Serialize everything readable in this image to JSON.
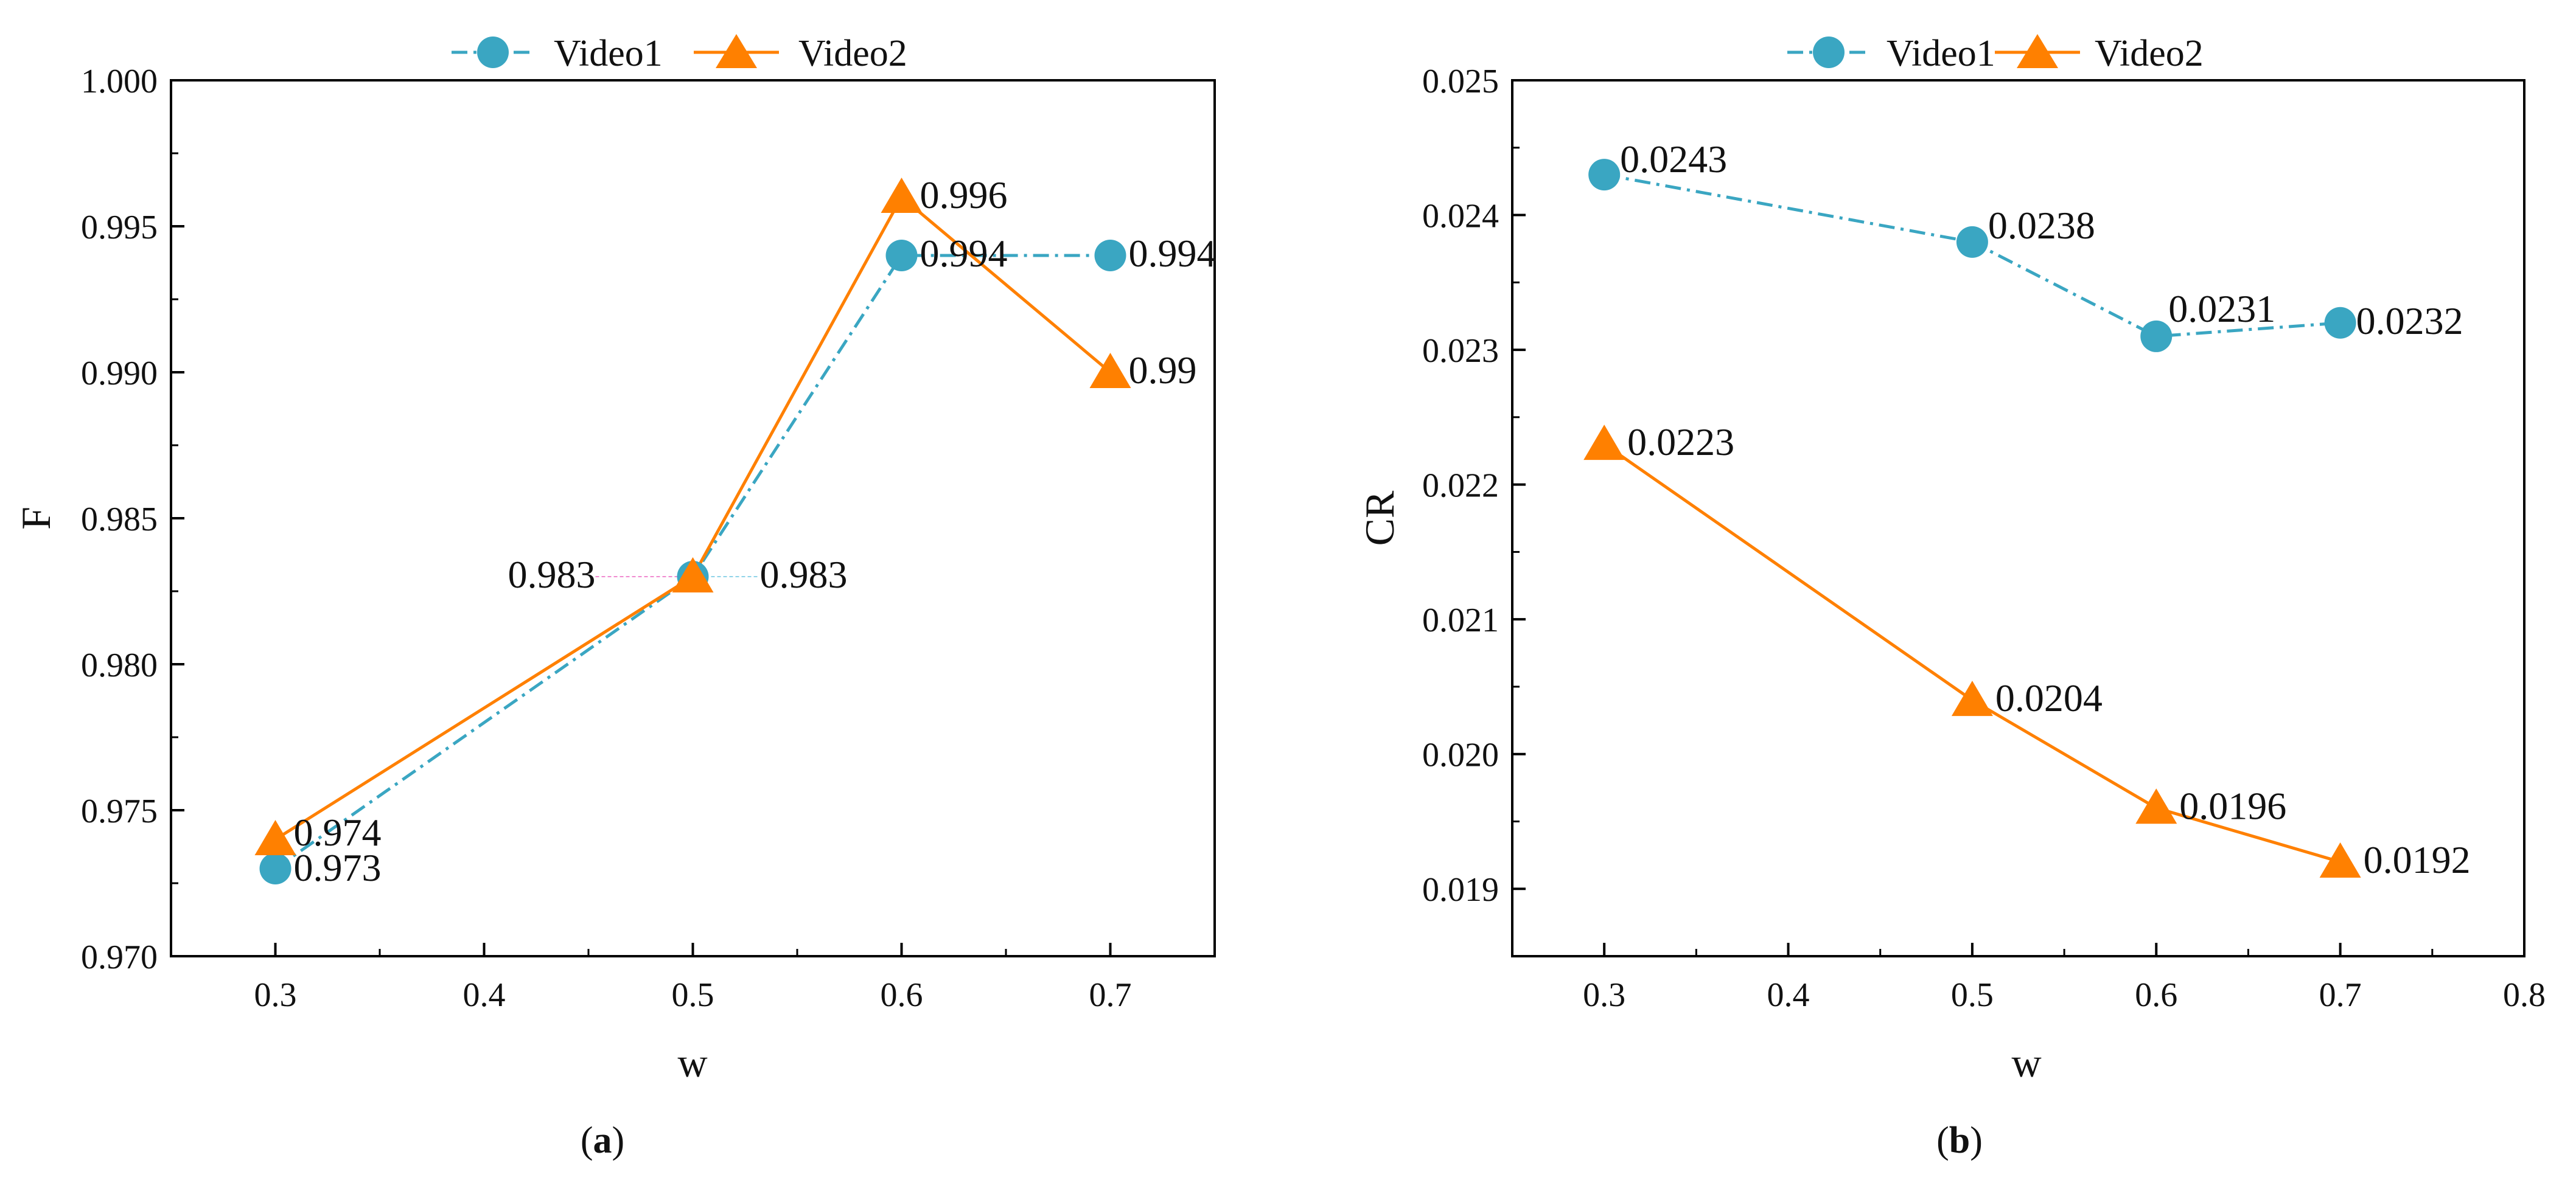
{
  "chart_data": [
    {
      "type": "line",
      "panel_caption": "(a)",
      "caption_letter": "a",
      "xlabel": "w",
      "ylabel": "F",
      "xlim": [
        0.25,
        0.75
      ],
      "ylim": [
        0.97,
        1.0
      ],
      "xticks": [
        0.3,
        0.4,
        0.5,
        0.6,
        0.7
      ],
      "xtick_labels": [
        "0.3",
        "0.4",
        "0.5",
        "0.6",
        "0.7"
      ],
      "yticks": [
        0.97,
        0.975,
        0.98,
        0.985,
        0.99,
        0.995,
        1.0
      ],
      "ytick_labels": [
        "0.970",
        "0.975",
        "0.980",
        "0.985",
        "0.990",
        "0.995",
        "1.000"
      ],
      "legend": [
        "Video1",
        "Video2"
      ],
      "legend_position": "top-center",
      "series": [
        {
          "name": "Video1",
          "color": "#3aa6c2",
          "marker": "circle",
          "line_style": "dash-dot",
          "x": [
            0.3,
            0.5,
            0.6,
            0.7
          ],
          "values": [
            0.973,
            0.983,
            0.994,
            0.994
          ],
          "data_labels": [
            "0.973",
            "0.983",
            "0.994",
            "0.994"
          ]
        },
        {
          "name": "Video2",
          "color": "#ff8000",
          "marker": "triangle",
          "line_style": "solid",
          "x": [
            0.3,
            0.5,
            0.6,
            0.7
          ],
          "values": [
            0.974,
            0.983,
            0.996,
            0.99
          ],
          "data_labels": [
            "0.974",
            "0.983",
            "0.996",
            "0.99"
          ]
        }
      ]
    },
    {
      "type": "line",
      "panel_caption": "(b)",
      "caption_letter": "b",
      "xlabel": "w",
      "ylabel": "CR",
      "xlim": [
        0.25,
        0.8
      ],
      "ylim": [
        0.0185,
        0.025
      ],
      "xticks": [
        0.3,
        0.4,
        0.5,
        0.6,
        0.7,
        0.8
      ],
      "xtick_labels": [
        "0.3",
        "0.4",
        "0.5",
        "0.6",
        "0.7",
        "0.8"
      ],
      "yticks": [
        0.019,
        0.02,
        0.021,
        0.022,
        0.023,
        0.024,
        0.025
      ],
      "ytick_labels": [
        "0.019",
        "0.020",
        "0.021",
        "0.022",
        "0.023",
        "0.024",
        "0.025"
      ],
      "legend": [
        "Video1",
        "Video2"
      ],
      "legend_position": "top-center",
      "series": [
        {
          "name": "Video1",
          "color": "#3aa6c2",
          "marker": "circle",
          "line_style": "dash-dot",
          "x": [
            0.3,
            0.5,
            0.6,
            0.7
          ],
          "values": [
            0.0243,
            0.0238,
            0.0231,
            0.0232
          ],
          "data_labels": [
            "0.0243",
            "0.0238",
            "0.0231",
            "0.0232"
          ]
        },
        {
          "name": "Video2",
          "color": "#ff8000",
          "marker": "triangle",
          "line_style": "solid",
          "x": [
            0.3,
            0.5,
            0.6,
            0.7
          ],
          "values": [
            0.0223,
            0.0204,
            0.0196,
            0.0192
          ],
          "data_labels": [
            "0.0223",
            "0.0204",
            "0.0196",
            "0.0192"
          ]
        }
      ]
    }
  ]
}
